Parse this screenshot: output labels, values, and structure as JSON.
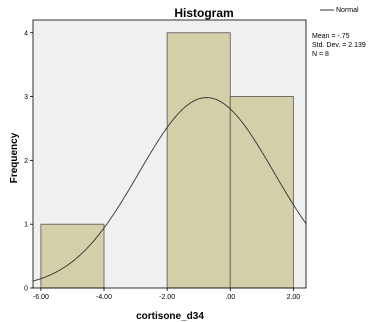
{
  "chart_data": {
    "type": "bar",
    "title": "Histogram",
    "xlabel": "cortisone_d34",
    "ylabel": "Frequency",
    "bins": [
      {
        "from": -6.0,
        "to": -4.0,
        "count": 1
      },
      {
        "from": -4.0,
        "to": -2.0,
        "count": 0
      },
      {
        "from": -2.0,
        "to": 0.0,
        "count": 4
      },
      {
        "from": 0.0,
        "to": 2.0,
        "count": 3
      }
    ],
    "xlim": [
      -6.25,
      2.4
    ],
    "ylim": [
      0,
      4.2
    ],
    "x_ticks": [
      {
        "value": -6.0,
        "label": "-6.00"
      },
      {
        "value": -4.0,
        "label": "-4.00"
      },
      {
        "value": -2.0,
        "label": "-2.00"
      },
      {
        "value": 0.0,
        "label": ".00"
      },
      {
        "value": 2.0,
        "label": "2.00"
      }
    ],
    "y_ticks": [
      {
        "value": 0,
        "label": "0"
      },
      {
        "value": 1,
        "label": "1"
      },
      {
        "value": 2,
        "label": "2"
      },
      {
        "value": 3,
        "label": "3"
      },
      {
        "value": 4,
        "label": "4"
      }
    ],
    "normal_curve": {
      "name": "Normal",
      "mean": -0.75,
      "sd": 2.139,
      "n": 8,
      "bin_width": 2
    },
    "stats_lines": [
      "Mean = -.75",
      "Std. Dev. = 2.139",
      "N = 8"
    ],
    "legend": {
      "placement": "top-right",
      "entries": [
        "Normal"
      ]
    },
    "colors": {
      "bar_fill": "#d2d0a8",
      "bar_stroke": "#555555",
      "plot_bg": "#f0f0f0",
      "curve": "#333333"
    }
  }
}
